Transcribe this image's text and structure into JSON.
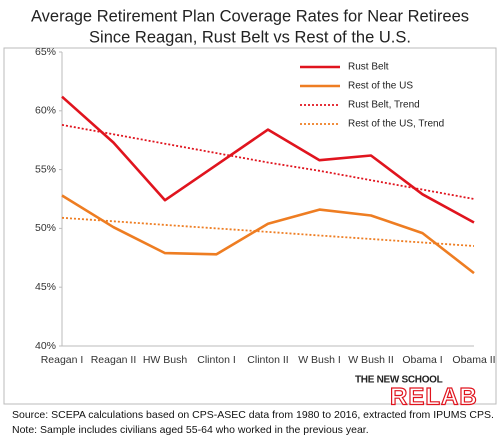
{
  "chart_data": {
    "type": "line",
    "title": [
      "Average Retirement Plan Coverage Rates for Near Retirees",
      "Since Reagan, Rust Belt vs Rest of the U.S."
    ],
    "categories": [
      "Reagan I",
      "Reagan II",
      "HW Bush",
      "Clinton I",
      "Clinton II",
      "W Bush I",
      "W Bush II",
      "Obama I",
      "Obama II"
    ],
    "series": [
      {
        "name": "Rust Belt",
        "color": "#e0141e",
        "dash": false,
        "values": [
          61.2,
          57.3,
          52.4,
          55.4,
          58.4,
          55.8,
          56.2,
          52.9,
          50.5
        ]
      },
      {
        "name": "Rest of the US",
        "color": "#ee7d22",
        "dash": false,
        "values": [
          52.8,
          50.1,
          47.9,
          47.8,
          50.4,
          51.6,
          51.1,
          49.6,
          46.2
        ]
      },
      {
        "name": "Rust Belt, Trend",
        "color": "#e0141e",
        "dash": true,
        "values": [
          58.8,
          58.0,
          57.2,
          56.4,
          55.6,
          54.9,
          54.1,
          53.3,
          52.5
        ]
      },
      {
        "name": "Rest of the US, Trend",
        "color": "#ee7d22",
        "dash": true,
        "values": [
          50.9,
          50.6,
          50.3,
          50.0,
          49.7,
          49.4,
          49.1,
          48.8,
          48.5
        ]
      }
    ],
    "ylim": [
      40,
      65
    ],
    "yticks": [
      {
        "value": 40,
        "label": "40%"
      },
      {
        "value": 45,
        "label": "45%"
      },
      {
        "value": 50,
        "label": "50%"
      },
      {
        "value": 55,
        "label": "55%"
      },
      {
        "value": 60,
        "label": "60%"
      },
      {
        "value": 65,
        "label": "65%"
      }
    ],
    "legend": "upper right",
    "logo": {
      "top": "THE NEW SCHOOL",
      "main": "RELAB"
    },
    "notes": [
      "Source: SCEPA calculations based on CPS-ASEC data from 1980 to 2016, extracted  from IPUMS CPS.",
      "Note: Sample includes civilians aged 55-64 who worked in the previous year."
    ]
  }
}
